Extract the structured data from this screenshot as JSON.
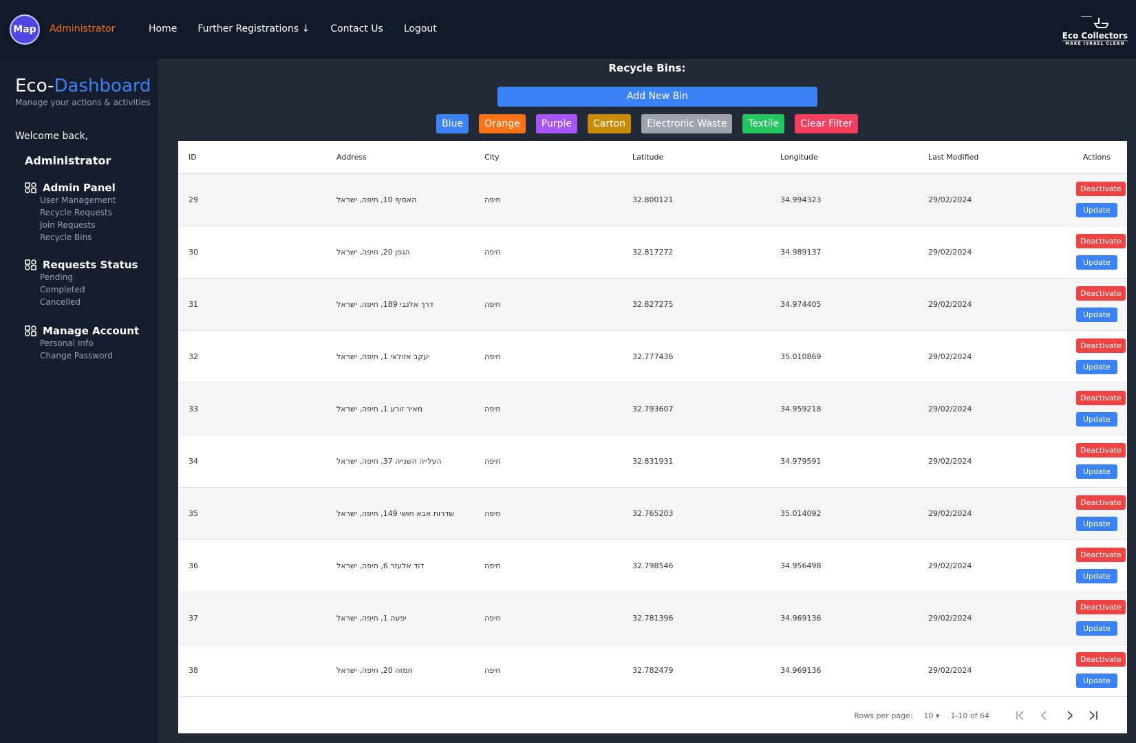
{
  "nav": {
    "logo": "Map",
    "user": "Administrator",
    "links": [
      "Home",
      "Further Registrations ↓",
      "Contact Us",
      "Logout"
    ],
    "brand": "Eco Collectors",
    "brand_tagline": "MAKE ISRAEL CLEAN"
  },
  "sidebar": {
    "title_part1": "Eco-",
    "title_part2": "Dashboard",
    "subtitle": "Manage your actions & activities",
    "welcome": "Welcome back,",
    "user": "Administrator",
    "sections": [
      {
        "title": "Admin Panel",
        "items": [
          "User Management",
          "Recycle Requests",
          "Join Requests",
          "Recycle Bins"
        ]
      },
      {
        "title": "Requests Status",
        "items": [
          "Pending",
          "Completed",
          "Cancelled"
        ]
      },
      {
        "title": "Manage Account",
        "items": [
          "Personal Info",
          "Change Password"
        ]
      }
    ]
  },
  "main": {
    "title": "Recycle Bins:",
    "add_button": "Add New Bin",
    "filters": [
      {
        "label": "Blue",
        "color": "#3b82f6"
      },
      {
        "label": "Orange",
        "color": "#f97316"
      },
      {
        "label": "Purple",
        "color": "#a855f7"
      },
      {
        "label": "Carton",
        "color": "#ca8a04"
      },
      {
        "label": "Electronic Waste",
        "color": "#9ca3af"
      },
      {
        "label": "Textile",
        "color": "#22c55e"
      },
      {
        "label": "Clear Filter",
        "color": "#f43f5e"
      }
    ],
    "table": {
      "headers": [
        "ID",
        "Address",
        "City",
        "Latitude",
        "Longitude",
        "Last Modified",
        "Actions"
      ],
      "actions": [
        "Deactivate",
        "Update"
      ],
      "rows": [
        [
          "29",
          "האסיף 10, חיפה, ישראל",
          "חיפה",
          "32.800121",
          "34.994323",
          "29/02/2024"
        ],
        [
          "30",
          "הגפן 20, חיפה, ישראל",
          "חיפה",
          "32.817272",
          "34.989137",
          "29/02/2024"
        ],
        [
          "31",
          "דרך אלנבי 189, חיפה, ישראל",
          "חיפה",
          "32.827275",
          "34.974405",
          "29/02/2024"
        ],
        [
          "32",
          "יעקב אזולאי 1, חיפה, ישראל",
          "חיפה",
          "32.777436",
          "35.010869",
          "29/02/2024"
        ],
        [
          "33",
          "מאיר זורע 1, חיפה, ישראל",
          "חיפה",
          "32.793607",
          "34.959218",
          "29/02/2024"
        ],
        [
          "34",
          "העלייה השנייה 37, חיפה, ישראל",
          "חיפה",
          "32.831931",
          "34.979591",
          "29/02/2024"
        ],
        [
          "35",
          "שדרות אבא חושי 149, חיפה, ישראל",
          "חיפה",
          "32.765203",
          "35.014092",
          "29/02/2024"
        ],
        [
          "36",
          "דוד אלעזר 6, חיפה, ישראל",
          "חיפה",
          "32.798546",
          "34.956498",
          "29/02/2024"
        ],
        [
          "37",
          "יפעה 1, חיפה, ישראל",
          "חיפה",
          "32.781396",
          "34.969136",
          "29/02/2024"
        ],
        [
          "38",
          "חמזה 20, חיפה, ישראל",
          "חיפה",
          "32.782479",
          "34.969136",
          "29/02/2024"
        ]
      ]
    },
    "pagination": {
      "rows_label": "Rows per page:",
      "rows_value": "10",
      "range": "1-10 of 64"
    }
  }
}
